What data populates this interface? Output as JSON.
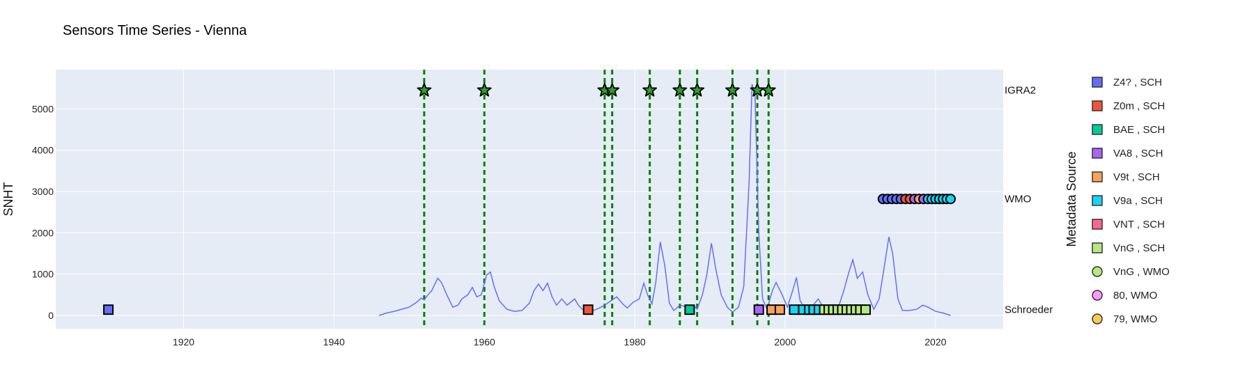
{
  "chart_data": {
    "type": "line",
    "title": "Sensors Time Series - Vienna",
    "ylabel": "SNHT",
    "legend_title": "Metadata Source",
    "xlim": [
      1903,
      2029
    ],
    "ylim": [
      -320,
      5950
    ],
    "x_ticks": [
      1920,
      1940,
      1960,
      1980,
      2000,
      2020
    ],
    "y_ticks": [
      0,
      1000,
      2000,
      3000,
      4000,
      5000
    ],
    "grid": true,
    "legend_position": "right",
    "colors": {
      "plot_bg": "#e5ecf6",
      "grid": "#ffffff",
      "line": "#636efa",
      "event_line": "#008000",
      "star": "#2ca02c"
    },
    "row_labels": [
      {
        "label": "IGRA2",
        "y": 5450
      },
      {
        "label": "WMO",
        "y": 2820
      },
      {
        "label": "Schroeder",
        "y": 140
      }
    ],
    "snht_series": {
      "name": "SNHT",
      "points": [
        [
          1946.0,
          0
        ],
        [
          1947.0,
          60
        ],
        [
          1948.0,
          100
        ],
        [
          1949.0,
          150
        ],
        [
          1950.0,
          200
        ],
        [
          1951.0,
          320
        ],
        [
          1951.6,
          420
        ],
        [
          1952.0,
          380
        ],
        [
          1952.5,
          500
        ],
        [
          1953.0,
          600
        ],
        [
          1953.8,
          900
        ],
        [
          1954.3,
          800
        ],
        [
          1955.0,
          500
        ],
        [
          1955.8,
          200
        ],
        [
          1956.5,
          250
        ],
        [
          1957.0,
          400
        ],
        [
          1957.8,
          500
        ],
        [
          1958.4,
          680
        ],
        [
          1959.0,
          450
        ],
        [
          1959.6,
          500
        ],
        [
          1960.3,
          980
        ],
        [
          1960.8,
          1050
        ],
        [
          1961.3,
          700
        ],
        [
          1962.0,
          350
        ],
        [
          1963.0,
          150
        ],
        [
          1964.0,
          100
        ],
        [
          1965.0,
          120
        ],
        [
          1966.0,
          300
        ],
        [
          1966.6,
          600
        ],
        [
          1967.2,
          760
        ],
        [
          1967.8,
          600
        ],
        [
          1968.4,
          780
        ],
        [
          1969.0,
          450
        ],
        [
          1969.6,
          250
        ],
        [
          1970.3,
          400
        ],
        [
          1971.0,
          250
        ],
        [
          1972.0,
          400
        ],
        [
          1972.5,
          250
        ],
        [
          1973.0,
          150
        ],
        [
          1973.8,
          100
        ],
        [
          1974.5,
          120
        ],
        [
          1975.3,
          180
        ],
        [
          1976.0,
          250
        ],
        [
          1976.8,
          350
        ],
        [
          1977.6,
          450
        ],
        [
          1978.4,
          280
        ],
        [
          1979.0,
          180
        ],
        [
          1979.8,
          320
        ],
        [
          1980.6,
          400
        ],
        [
          1981.2,
          780
        ],
        [
          1981.7,
          500
        ],
        [
          1982.3,
          280
        ],
        [
          1982.8,
          800
        ],
        [
          1983.4,
          1780
        ],
        [
          1984.0,
          1200
        ],
        [
          1984.6,
          300
        ],
        [
          1985.2,
          120
        ],
        [
          1986.0,
          250
        ],
        [
          1987.0,
          200
        ],
        [
          1987.8,
          250
        ],
        [
          1988.3,
          150
        ],
        [
          1989.0,
          500
        ],
        [
          1989.6,
          1000
        ],
        [
          1990.2,
          1750
        ],
        [
          1990.8,
          1100
        ],
        [
          1991.5,
          500
        ],
        [
          1992.3,
          200
        ],
        [
          1993.0,
          80
        ],
        [
          1993.8,
          200
        ],
        [
          1994.5,
          700
        ],
        [
          1995.2,
          3200
        ],
        [
          1995.6,
          5600
        ],
        [
          1996.0,
          5300
        ],
        [
          1996.5,
          2000
        ],
        [
          1997.0,
          400
        ],
        [
          1997.6,
          150
        ],
        [
          1998.3,
          600
        ],
        [
          1998.8,
          800
        ],
        [
          1999.6,
          500
        ],
        [
          2000.3,
          200
        ],
        [
          2001.0,
          600
        ],
        [
          2001.5,
          920
        ],
        [
          2002.0,
          350
        ],
        [
          2002.8,
          120
        ],
        [
          2003.6,
          220
        ],
        [
          2004.4,
          400
        ],
        [
          2005.2,
          150
        ],
        [
          2006.0,
          100
        ],
        [
          2007.0,
          150
        ],
        [
          2007.8,
          600
        ],
        [
          2008.4,
          1000
        ],
        [
          2009.0,
          1350
        ],
        [
          2009.6,
          900
        ],
        [
          2010.3,
          1050
        ],
        [
          2011.0,
          500
        ],
        [
          2011.8,
          150
        ],
        [
          2012.5,
          400
        ],
        [
          2013.2,
          1200
        ],
        [
          2013.8,
          1900
        ],
        [
          2014.3,
          1500
        ],
        [
          2015.0,
          400
        ],
        [
          2015.6,
          120
        ],
        [
          2016.5,
          120
        ],
        [
          2017.5,
          150
        ],
        [
          2018.3,
          250
        ],
        [
          2019.0,
          200
        ],
        [
          2020.0,
          100
        ],
        [
          2021.0,
          60
        ],
        [
          2022.0,
          0
        ]
      ]
    },
    "igra2_events": {
      "x": [
        1952.0,
        1960.0,
        1976.0,
        1977.0,
        1982.0,
        1986.0,
        1988.3,
        1993.0,
        1996.3,
        1997.8
      ],
      "y": 5450
    },
    "wmo_events": {
      "y": 2820,
      "points": [
        [
          2013.0,
          "#636efa"
        ],
        [
          2013.6,
          "#636efa"
        ],
        [
          2014.2,
          "#636efa"
        ],
        [
          2014.8,
          "#636efa"
        ],
        [
          2015.4,
          "#636efa"
        ],
        [
          2016.0,
          "#ef553b"
        ],
        [
          2016.6,
          "#ef553b"
        ],
        [
          2017.2,
          "#ab63fa"
        ],
        [
          2017.8,
          "#ffa15a"
        ],
        [
          2018.4,
          "#ab63fa"
        ],
        [
          2019.0,
          "#19d3f3"
        ],
        [
          2019.5,
          "#19d3f3"
        ],
        [
          2020.0,
          "#19d3f3"
        ],
        [
          2020.5,
          "#19d3f3"
        ],
        [
          2021.0,
          "#19d3f3"
        ],
        [
          2021.5,
          "#19d3f3"
        ],
        [
          2022.0,
          "#19d3f3"
        ]
      ]
    },
    "schroeder_events": {
      "y": 140,
      "points": [
        [
          1910.0,
          "#636efa"
        ],
        [
          1973.8,
          "#ef553b"
        ],
        [
          1987.3,
          "#00cc96"
        ],
        [
          1996.5,
          "#ab63fa"
        ],
        [
          1998.2,
          "#ffa15a"
        ],
        [
          1999.3,
          "#ffa15a"
        ],
        [
          2001.2,
          "#19d3f3"
        ],
        [
          2002.4,
          "#19d3f3"
        ],
        [
          2003.2,
          "#19d3f3"
        ],
        [
          2003.8,
          "#19d3f3"
        ],
        [
          2004.5,
          "#19d3f3"
        ],
        [
          2005.2,
          "#b6e880"
        ],
        [
          2005.8,
          "#b6e880"
        ],
        [
          2006.4,
          "#b6e880"
        ],
        [
          2007.0,
          "#b6e880"
        ],
        [
          2007.6,
          "#b6e880"
        ],
        [
          2008.2,
          "#b6e880"
        ],
        [
          2008.8,
          "#b6e880"
        ],
        [
          2009.4,
          "#b6e880"
        ],
        [
          2010.0,
          "#b6e880"
        ],
        [
          2010.7,
          "#b6e880"
        ]
      ]
    },
    "legend": [
      {
        "label": "Z4? , SCH",
        "color": "#636efa",
        "shape": "square"
      },
      {
        "label": "Z0m , SCH",
        "color": "#ef553b",
        "shape": "square"
      },
      {
        "label": "BAE , SCH",
        "color": "#00cc96",
        "shape": "square"
      },
      {
        "label": "VA8 , SCH",
        "color": "#ab63fa",
        "shape": "square"
      },
      {
        "label": "V9t , SCH",
        "color": "#ffa15a",
        "shape": "square"
      },
      {
        "label": "V9a , SCH",
        "color": "#19d3f3",
        "shape": "square"
      },
      {
        "label": "VNT , SCH",
        "color": "#ff6692",
        "shape": "square"
      },
      {
        "label": "VnG , SCH",
        "color": "#b6e880",
        "shape": "square"
      },
      {
        "label": "VnG , WMO",
        "color": "#b6e880",
        "shape": "circle"
      },
      {
        "label": "80, WMO",
        "color": "#ff97ff",
        "shape": "circle"
      },
      {
        "label": "79, WMO",
        "color": "#fecb52",
        "shape": "circle"
      }
    ]
  }
}
